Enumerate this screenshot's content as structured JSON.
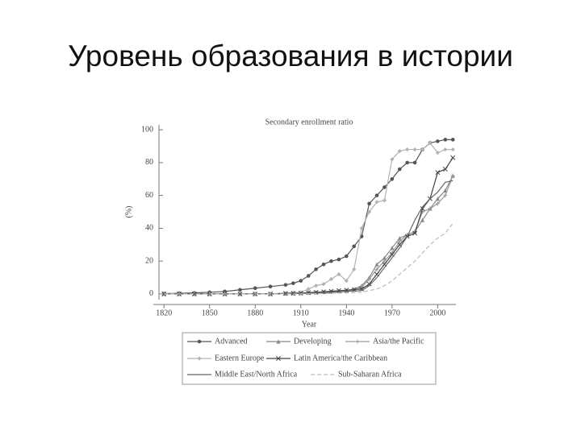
{
  "slide": {
    "title": "Уровень образования в истории"
  },
  "chart_data": {
    "type": "line",
    "title": "Secondary enrollment ratio",
    "x_label": "Year",
    "y_label": "(%)",
    "x": [
      1820,
      1830,
      1840,
      1850,
      1860,
      1870,
      1880,
      1890,
      1900,
      1905,
      1910,
      1915,
      1920,
      1925,
      1930,
      1935,
      1940,
      1945,
      1950,
      1955,
      1960,
      1965,
      1970,
      1975,
      1980,
      1985,
      1990,
      1995,
      2000,
      2005,
      2010
    ],
    "xlim": [
      1813,
      2012
    ],
    "xticks": [
      1820,
      1850,
      1880,
      1910,
      1940,
      1970,
      2000
    ],
    "ylim": [
      -3.5,
      103
    ],
    "yticks": [
      0,
      20,
      40,
      60,
      80,
      100
    ],
    "series": [
      {
        "name": "Advanced",
        "color": "#555555",
        "marker": "circle",
        "dash": false,
        "values": [
          0.2,
          0.4,
          0.6,
          1,
          1.5,
          2.5,
          3.5,
          4.5,
          5.5,
          6.5,
          8,
          11,
          15,
          18,
          20,
          21,
          23,
          29,
          35,
          55,
          60,
          65,
          70,
          76,
          80,
          80,
          88,
          92,
          93,
          94,
          94
        ]
      },
      {
        "name": "Developing",
        "color": "#888888",
        "marker": "triangle",
        "dash": false,
        "values": [
          0,
          0,
          0,
          0,
          0,
          0,
          0,
          0,
          0.3,
          0.4,
          0.5,
          0.8,
          1,
          1.2,
          1.5,
          1.8,
          2,
          3,
          5,
          10,
          18,
          22,
          28,
          34,
          36,
          38,
          45,
          52,
          58,
          63,
          72
        ]
      },
      {
        "name": "Asia/the Pacific",
        "color": "#999999",
        "marker": "plus",
        "dash": false,
        "values": [
          0,
          0,
          0,
          0,
          0,
          0,
          0,
          0,
          0.2,
          0.3,
          0.4,
          0.6,
          0.8,
          1,
          1.2,
          1.5,
          2,
          2.5,
          4,
          9,
          15,
          20,
          25,
          32,
          36,
          38,
          50,
          52,
          55,
          60,
          72
        ]
      },
      {
        "name": "Eastern Europe",
        "color": "#b3b3b3",
        "marker": "diamond",
        "dash": false,
        "values": [
          0,
          0,
          0,
          0,
          0,
          0,
          0,
          0,
          0.5,
          0.8,
          1,
          3,
          5,
          6,
          9,
          12,
          8,
          15,
          40,
          50,
          56,
          57,
          82,
          87,
          88,
          88,
          88,
          92,
          86,
          88,
          88
        ]
      },
      {
        "name": "Latin America/the Caribbean",
        "color": "#444444",
        "marker": "x",
        "dash": false,
        "values": [
          0,
          0,
          0,
          0,
          0,
          0,
          0,
          0,
          0.3,
          0.4,
          0.5,
          0.8,
          1,
          1.3,
          1.6,
          2,
          2.3,
          2.6,
          3,
          6,
          12,
          18,
          24,
          30,
          35,
          37,
          52,
          58,
          74,
          76,
          83
        ]
      },
      {
        "name": "Middle East/North Africa",
        "color": "#666666",
        "marker": "none",
        "dash": false,
        "values": [
          0,
          0,
          0,
          0,
          0,
          0,
          0,
          0,
          0.1,
          0.2,
          0.3,
          0.4,
          0.5,
          0.7,
          1,
          1.2,
          1.5,
          1.8,
          2,
          5,
          10,
          16,
          22,
          28,
          35,
          45,
          53,
          58,
          62,
          68,
          69
        ]
      },
      {
        "name": "Sub-Saharan Africa",
        "color": "#bbbbbb",
        "marker": "none",
        "dash": true,
        "values": [
          0,
          0,
          0,
          0,
          0,
          0,
          0,
          0,
          0,
          0,
          0,
          0.1,
          0.2,
          0.3,
          0.4,
          0.5,
          0.6,
          0.8,
          1,
          2,
          3,
          5,
          8,
          12,
          16,
          20,
          25,
          30,
          34,
          37,
          43
        ]
      }
    ]
  }
}
